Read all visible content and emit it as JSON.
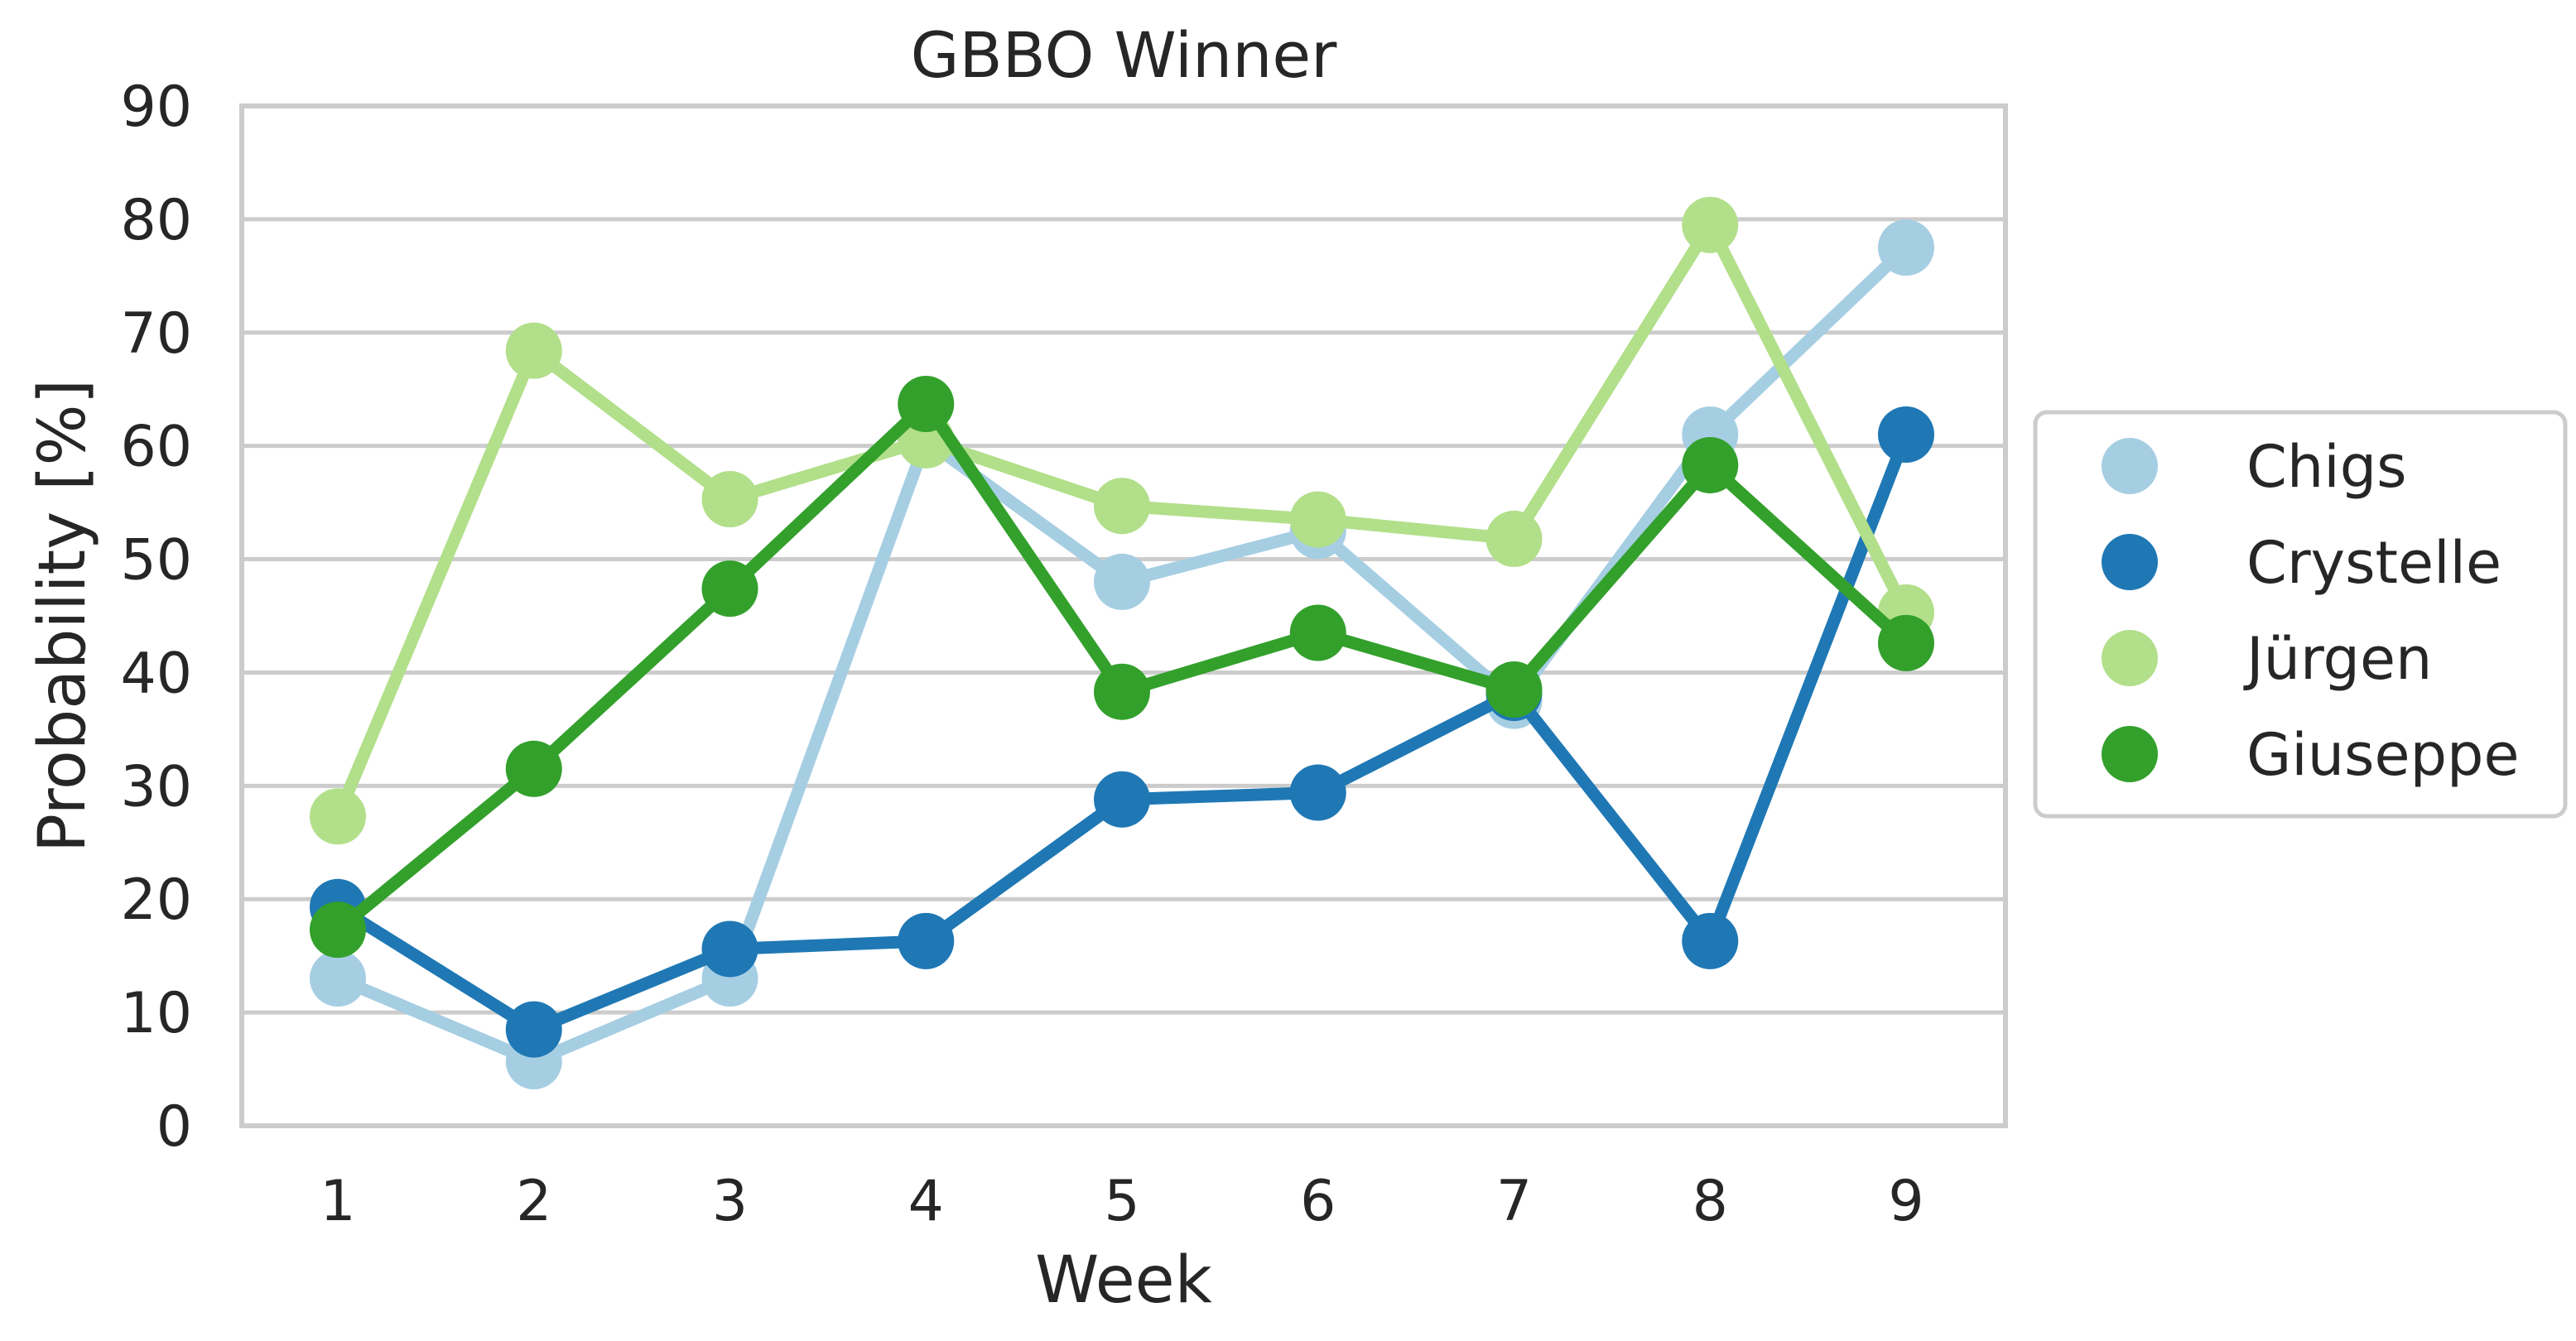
{
  "chart_data": {
    "type": "line",
    "title": "GBBO Winner",
    "xlabel": "Week",
    "ylabel": "Probability [%]",
    "categories": [
      "1",
      "2",
      "3",
      "4",
      "5",
      "6",
      "7",
      "8",
      "9"
    ],
    "yticks": [
      "0",
      "10",
      "20",
      "30",
      "40",
      "50",
      "60",
      "70",
      "80",
      "90"
    ],
    "ylim": [
      0,
      90
    ],
    "grid": "horizontal",
    "legend_position": "right",
    "series": [
      {
        "name": "Chigs",
        "color": "#a6cee3",
        "values": [
          13,
          5.7,
          13,
          60.5,
          48,
          52.5,
          37.5,
          61,
          77.5
        ]
      },
      {
        "name": "Crystelle",
        "color": "#1f78b4",
        "values": [
          19.3,
          8.5,
          15.6,
          16.3,
          28.8,
          29.4,
          38.2,
          16.3,
          61
        ]
      },
      {
        "name": "Jürgen",
        "color": "#b2df8a",
        "values": [
          27.3,
          68.4,
          55.3,
          60.5,
          54.7,
          53.5,
          51.8,
          79.5,
          45.3
        ]
      },
      {
        "name": "Giuseppe",
        "color": "#33a02c",
        "values": [
          17.3,
          31.5,
          47.4,
          63.7,
          38.3,
          43.5,
          38.5,
          58.3,
          42.6
        ]
      }
    ]
  }
}
